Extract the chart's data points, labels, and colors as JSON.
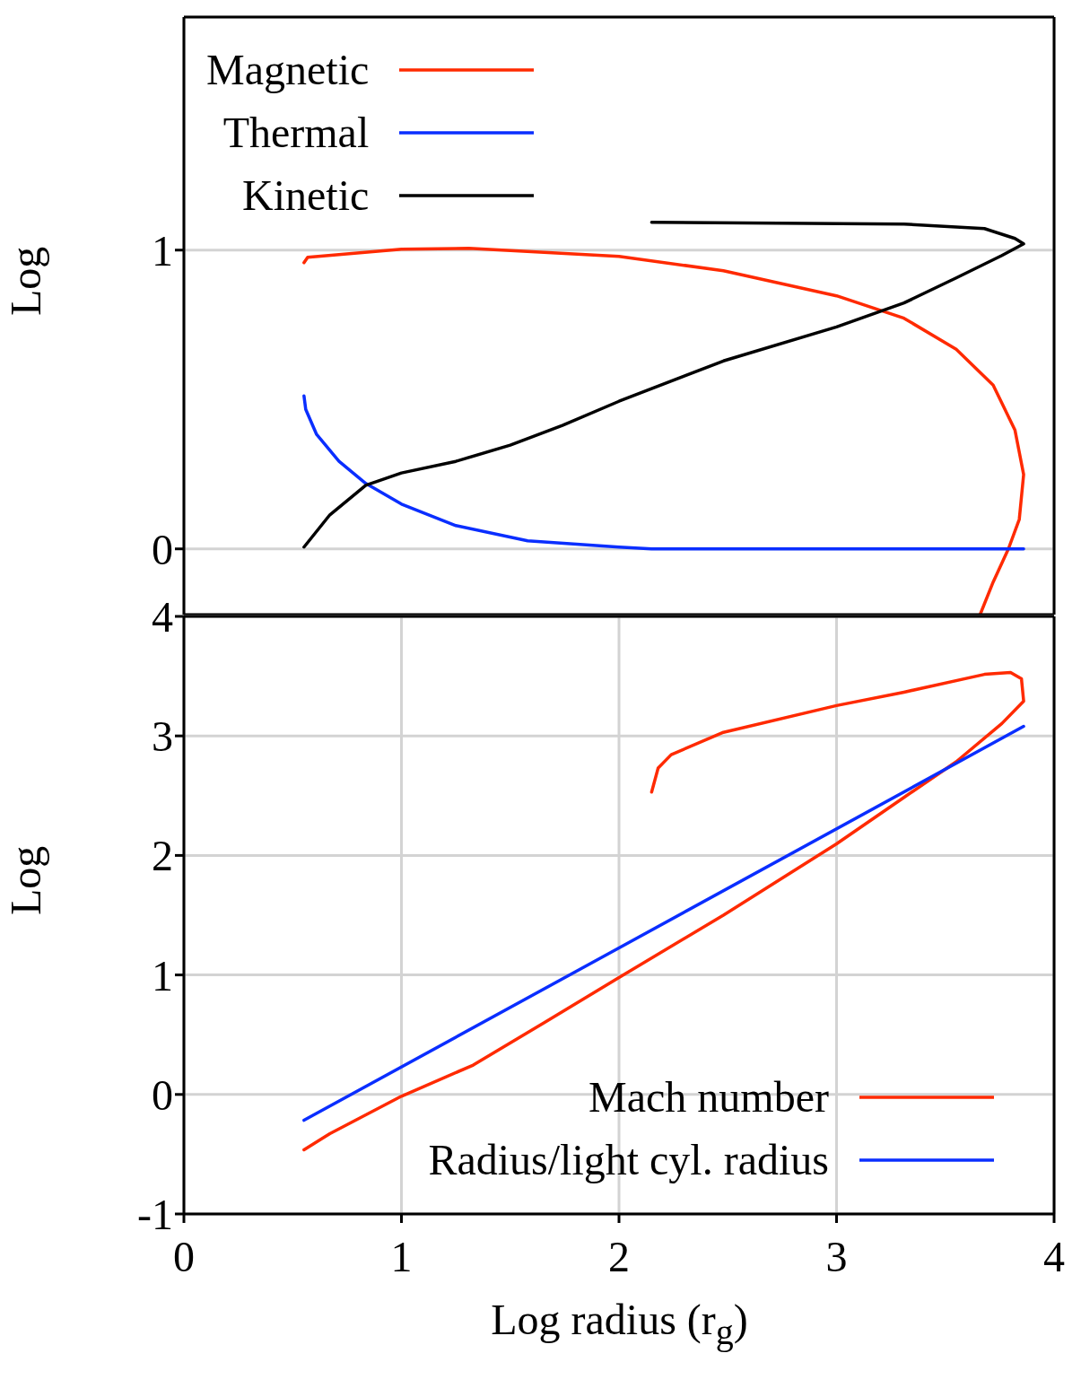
{
  "chart_data": [
    {
      "type": "line",
      "ylabel": "Log",
      "xlim": [
        0,
        4
      ],
      "xticks": [
        0,
        1,
        2,
        3,
        4
      ],
      "ylim": [
        -0.22,
        1.78
      ],
      "yticks": [
        0,
        1
      ],
      "grid": true,
      "legend": "top left",
      "tick_labels": "y",
      "line_style": "solid",
      "marker": "none",
      "series": [
        {
          "name": "Magnetic",
          "color": "#ff2a00",
          "x": [
            0.552,
            0.569,
            1.0,
            1.31,
            2.0,
            2.48,
            3.0,
            3.31,
            3.55,
            3.72,
            3.82,
            3.86,
            3.84,
            3.79,
            3.72,
            3.66
          ],
          "values": [
            0.958,
            0.976,
            1.003,
            1.006,
            0.979,
            0.931,
            0.847,
            0.772,
            0.668,
            0.548,
            0.398,
            0.249,
            0.099,
            0,
            -0.111,
            -0.22
          ]
        },
        {
          "name": "Thermal",
          "color": "#0a2eff",
          "x": [
            0.552,
            0.56,
            0.61,
            0.713,
            0.836,
            1.0,
            1.25,
            1.58,
            2.0,
            2.15,
            3.86
          ],
          "values": [
            0.512,
            0.467,
            0.383,
            0.293,
            0.219,
            0.15,
            0.078,
            0.027,
            0.006,
            0,
            0
          ]
        },
        {
          "name": "Kinetic",
          "color": "#000000",
          "x": [
            0.552,
            0.671,
            0.836,
            1.0,
            1.25,
            1.5,
            1.74,
            2.0,
            2.48,
            3.0,
            3.31,
            3.55,
            3.76,
            3.86,
            3.82,
            3.68,
            3.31,
            2.15
          ],
          "values": [
            0.006,
            0.114,
            0.213,
            0.254,
            0.293,
            0.347,
            0.413,
            0.494,
            0.629,
            0.743,
            0.823,
            0.907,
            0.982,
            1.021,
            1.039,
            1.072,
            1.087,
            1.093
          ]
        }
      ]
    },
    {
      "type": "line",
      "ylabel": "Log",
      "xlabel": "Log radius (r$_{g}$)",
      "xlim": [
        0,
        4
      ],
      "xticks": [
        0,
        1,
        2,
        3,
        4
      ],
      "ylim": [
        -1,
        4
      ],
      "yticks": [
        -1,
        0,
        1,
        2,
        3,
        4
      ],
      "grid": true,
      "legend": "bottom right",
      "line_style": "solid",
      "marker": "none",
      "series": [
        {
          "name": "Mach number",
          "color": "#ff2a00",
          "x": [
            0.552,
            0.671,
            1.0,
            1.33,
            1.66,
            2.0,
            2.48,
            3.0,
            3.31,
            3.55,
            3.76,
            3.86,
            3.85,
            3.8,
            3.68,
            3.31,
            3.0,
            2.48,
            2.24,
            2.18,
            2.15
          ],
          "values": [
            -0.463,
            -0.328,
            -0.015,
            0.246,
            0.604,
            0.978,
            1.5,
            2.097,
            2.485,
            2.784,
            3.104,
            3.291,
            3.478,
            3.53,
            3.515,
            3.366,
            3.254,
            3.03,
            2.843,
            2.731,
            2.53
          ]
        },
        {
          "name": "Radius/light cyl. radius",
          "color": "#0a2eff",
          "x": [
            0.552,
            2.0,
            3.86
          ],
          "values": [
            -0.216,
            1.226,
            3.08
          ]
        }
      ]
    }
  ]
}
